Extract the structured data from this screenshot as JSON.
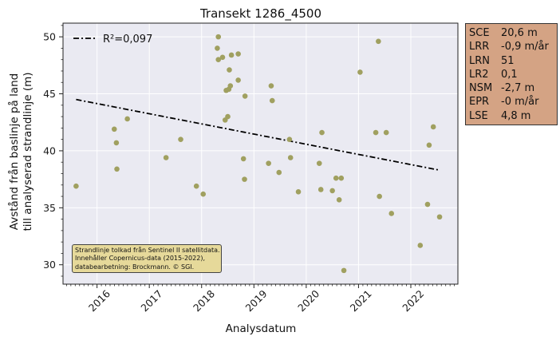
{
  "chart_data": {
    "type": "scatter",
    "title": "Transekt 1286_4500",
    "xlabel": "Analysdatum",
    "ylabel_line1": "Avstånd från baslinje på land",
    "ylabel_line2": "till analyserad strandlinje (m)",
    "xlim": [
      2015.35,
      2022.9
    ],
    "ylim": [
      28.3,
      51.2
    ],
    "x_ticks": [
      2016,
      2017,
      2018,
      2019,
      2020,
      2021,
      2022
    ],
    "x_tick_labels": [
      "2016",
      "2017",
      "2018",
      "2019",
      "2020",
      "2021",
      "2022"
    ],
    "y_ticks": [
      30,
      35,
      40,
      45,
      50
    ],
    "y_tick_labels": [
      "30",
      "35",
      "40",
      "45",
      "50"
    ],
    "grid": true,
    "legend_position": "top-left",
    "point_color": "#a0a060",
    "trend_color": "#000000",
    "points": [
      {
        "x": 2015.6,
        "y": 36.9
      },
      {
        "x": 2016.33,
        "y": 41.9
      },
      {
        "x": 2016.37,
        "y": 40.7
      },
      {
        "x": 2016.38,
        "y": 38.4
      },
      {
        "x": 2016.58,
        "y": 42.8
      },
      {
        "x": 2017.32,
        "y": 39.4
      },
      {
        "x": 2017.6,
        "y": 41.0
      },
      {
        "x": 2017.9,
        "y": 36.9
      },
      {
        "x": 2018.03,
        "y": 36.2
      },
      {
        "x": 2018.3,
        "y": 49.0
      },
      {
        "x": 2018.32,
        "y": 50.0
      },
      {
        "x": 2018.32,
        "y": 48.0
      },
      {
        "x": 2018.4,
        "y": 48.2
      },
      {
        "x": 2018.45,
        "y": 42.7
      },
      {
        "x": 2018.47,
        "y": 45.3
      },
      {
        "x": 2018.5,
        "y": 43.0
      },
      {
        "x": 2018.52,
        "y": 45.4
      },
      {
        "x": 2018.53,
        "y": 47.1
      },
      {
        "x": 2018.55,
        "y": 45.7
      },
      {
        "x": 2018.57,
        "y": 48.4
      },
      {
        "x": 2018.7,
        "y": 48.5
      },
      {
        "x": 2018.7,
        "y": 46.2
      },
      {
        "x": 2018.8,
        "y": 39.3
      },
      {
        "x": 2018.82,
        "y": 37.5
      },
      {
        "x": 2018.83,
        "y": 44.8
      },
      {
        "x": 2019.28,
        "y": 38.9
      },
      {
        "x": 2019.33,
        "y": 45.7
      },
      {
        "x": 2019.35,
        "y": 44.4
      },
      {
        "x": 2019.48,
        "y": 38.1
      },
      {
        "x": 2019.68,
        "y": 41.0
      },
      {
        "x": 2019.7,
        "y": 39.4
      },
      {
        "x": 2019.85,
        "y": 36.4
      },
      {
        "x": 2020.25,
        "y": 38.9
      },
      {
        "x": 2020.28,
        "y": 36.6
      },
      {
        "x": 2020.3,
        "y": 41.6
      },
      {
        "x": 2020.5,
        "y": 36.5
      },
      {
        "x": 2020.57,
        "y": 37.6
      },
      {
        "x": 2020.63,
        "y": 35.7
      },
      {
        "x": 2020.67,
        "y": 37.6
      },
      {
        "x": 2020.72,
        "y": 29.5
      },
      {
        "x": 2021.03,
        "y": 46.9
      },
      {
        "x": 2021.33,
        "y": 41.6
      },
      {
        "x": 2021.38,
        "y": 49.6
      },
      {
        "x": 2021.4,
        "y": 36.0
      },
      {
        "x": 2021.53,
        "y": 41.6
      },
      {
        "x": 2021.63,
        "y": 34.5
      },
      {
        "x": 2022.18,
        "y": 31.7
      },
      {
        "x": 2022.32,
        "y": 35.3
      },
      {
        "x": 2022.35,
        "y": 40.5
      },
      {
        "x": 2022.43,
        "y": 42.1
      },
      {
        "x": 2022.55,
        "y": 34.2
      }
    ],
    "trendline": {
      "label": "R²=0,097",
      "x": [
        2015.6,
        2022.55
      ],
      "y": [
        44.5,
        38.3
      ]
    },
    "stats": [
      {
        "key": "SCE",
        "value": "20,6 m"
      },
      {
        "key": "LRR",
        "value": "-0,9 m/år"
      },
      {
        "key": "LRN",
        "value": "51"
      },
      {
        "key": "LR2",
        "value": "0,1"
      },
      {
        "key": "NSM",
        "value": "-2,7 m"
      },
      {
        "key": "EPR",
        "value": "-0 m/år"
      },
      {
        "key": "LSE",
        "value": "4,8 m"
      }
    ],
    "note_lines": [
      "Strandlinje tolkad från Sentinel II satellitdata.",
      "Innehåller Copernicus-data (2015-2022),",
      "databearbetning: Brockmann. © SGI."
    ]
  }
}
